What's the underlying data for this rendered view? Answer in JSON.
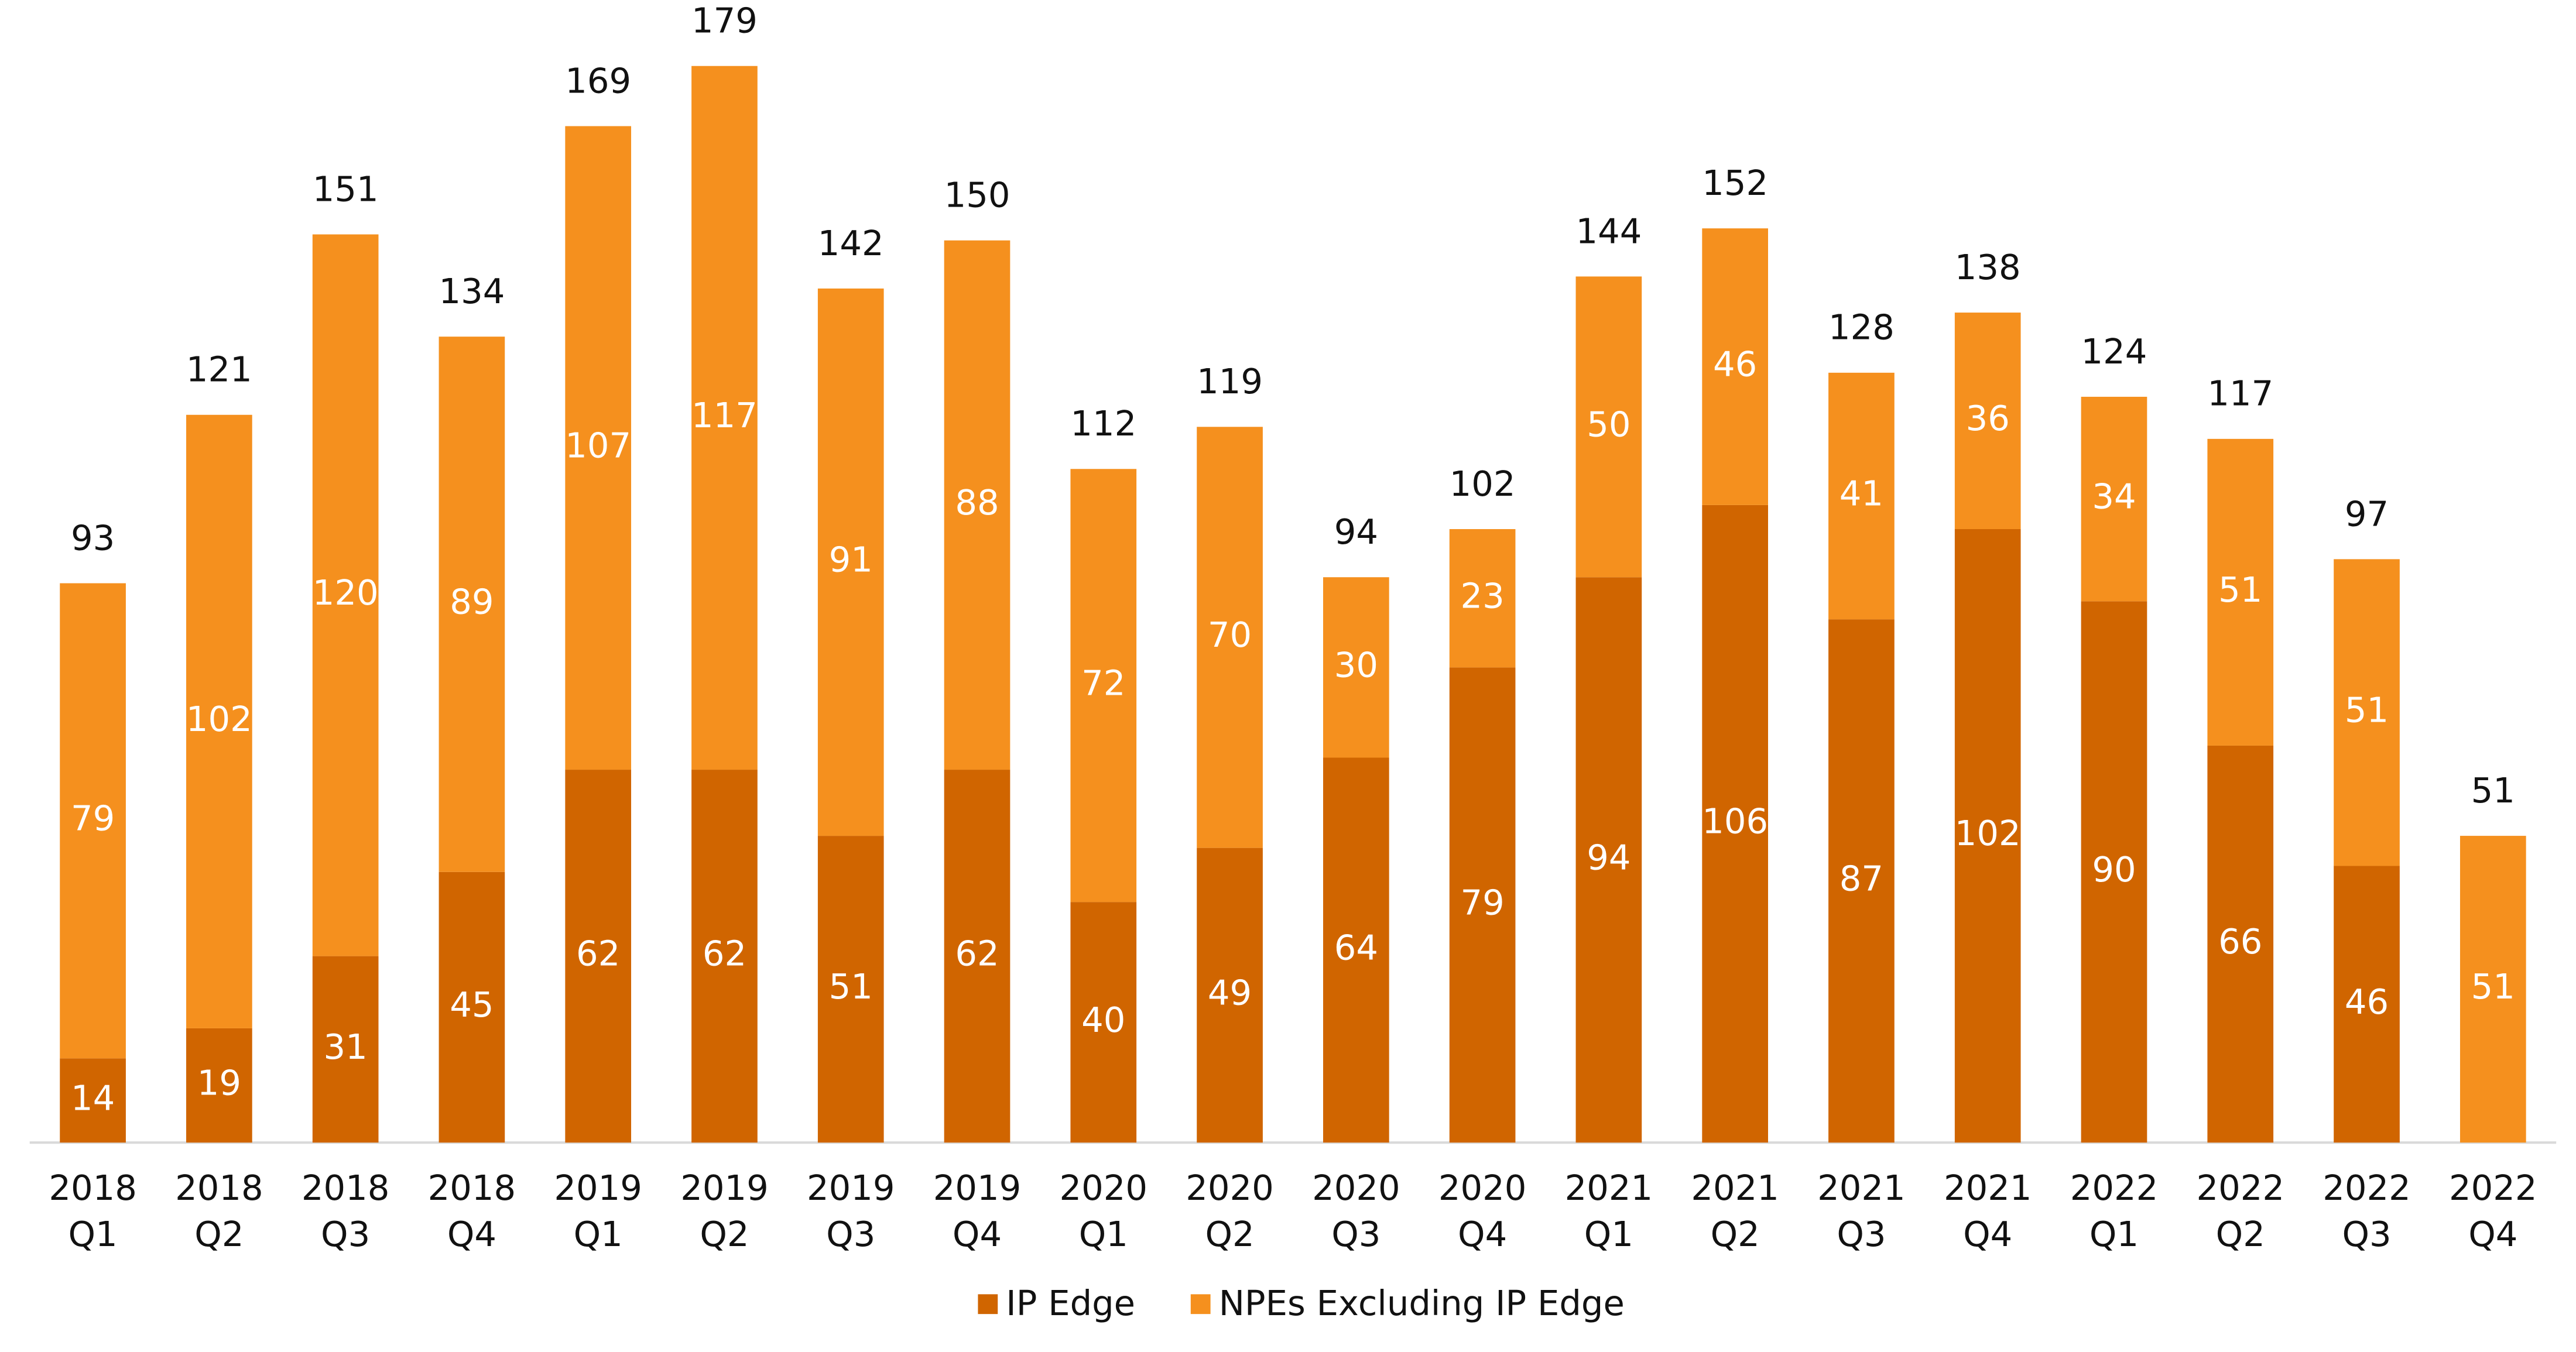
{
  "chart_data": {
    "type": "stacked_bar",
    "categories": [
      [
        "2018",
        "Q1"
      ],
      [
        "2018",
        "Q2"
      ],
      [
        "2018",
        "Q3"
      ],
      [
        "2018",
        "Q4"
      ],
      [
        "2019",
        "Q1"
      ],
      [
        "2019",
        "Q2"
      ],
      [
        "2019",
        "Q3"
      ],
      [
        "2019",
        "Q4"
      ],
      [
        "2020",
        "Q1"
      ],
      [
        "2020",
        "Q2"
      ],
      [
        "2020",
        "Q3"
      ],
      [
        "2020",
        "Q4"
      ],
      [
        "2021",
        "Q1"
      ],
      [
        "2021",
        "Q2"
      ],
      [
        "2021",
        "Q3"
      ],
      [
        "2021",
        "Q4"
      ],
      [
        "2022",
        "Q1"
      ],
      [
        "2022",
        "Q2"
      ],
      [
        "2022",
        "Q3"
      ],
      [
        "2022",
        "Q4"
      ]
    ],
    "series": [
      {
        "name": "IP Edge",
        "color": "#d06500",
        "values": [
          14,
          19,
          31,
          45,
          62,
          62,
          51,
          62,
          40,
          49,
          64,
          79,
          94,
          106,
          87,
          102,
          90,
          66,
          46,
          null
        ]
      },
      {
        "name": "NPEs Excluding IP Edge",
        "color": "#f5901e",
        "values": [
          79,
          102,
          120,
          89,
          107,
          117,
          91,
          88,
          72,
          70,
          30,
          23,
          50,
          46,
          41,
          36,
          34,
          51,
          51,
          51
        ]
      }
    ],
    "totals": [
      93,
      121,
      151,
      134,
      169,
      179,
      142,
      150,
      112,
      119,
      94,
      102,
      144,
      152,
      128,
      138,
      124,
      117,
      97,
      51
    ]
  }
}
